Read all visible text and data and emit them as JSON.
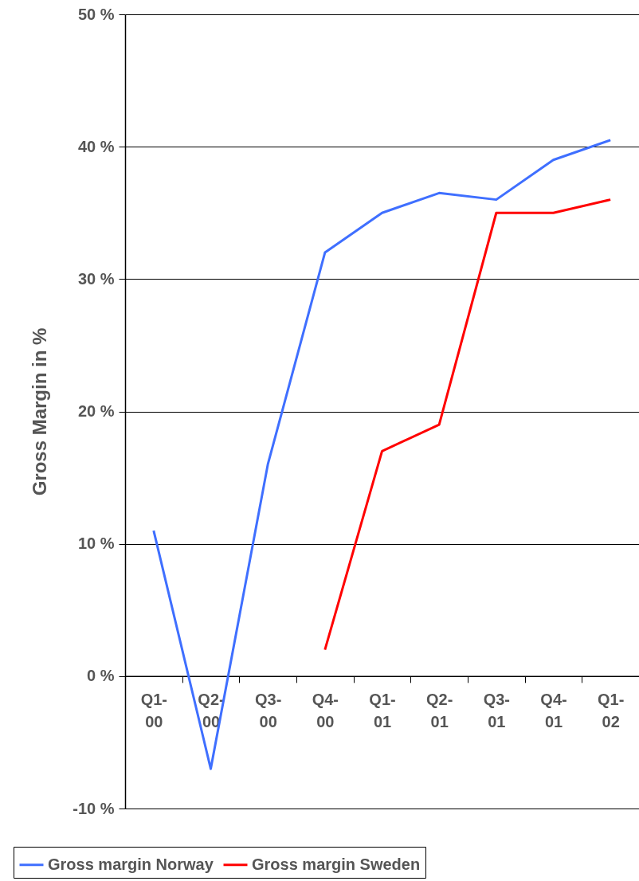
{
  "chart_data": {
    "type": "line",
    "ylabel": "Gross Margin in %",
    "categories": [
      "Q1-00",
      "Q2-00",
      "Q3-00",
      "Q4-00",
      "Q1-01",
      "Q2-01",
      "Q3-01",
      "Q4-01",
      "Q1-02"
    ],
    "series": [
      {
        "name": "Gross margin Norway",
        "color": "#3f6fff",
        "values": [
          11,
          -7,
          16,
          32,
          35,
          36.5,
          36,
          39,
          40.5
        ]
      },
      {
        "name": "Gross margin Sweden",
        "color": "#ff0000",
        "values": [
          null,
          null,
          null,
          2,
          17,
          19,
          35,
          35,
          36
        ]
      }
    ],
    "ylim": [
      -10,
      50
    ],
    "yticks": [
      {
        "value": -10,
        "label": "-10 %"
      },
      {
        "value": 0,
        "label": "0 %"
      },
      {
        "value": 10,
        "label": "10 %"
      },
      {
        "value": 20,
        "label": "20 %"
      },
      {
        "value": 30,
        "label": "30 %"
      },
      {
        "value": 40,
        "label": "40 %"
      },
      {
        "value": 50,
        "label": "50 %"
      }
    ],
    "grid": "y",
    "legend": "bottom",
    "marker": "none",
    "line_style": "solid"
  }
}
